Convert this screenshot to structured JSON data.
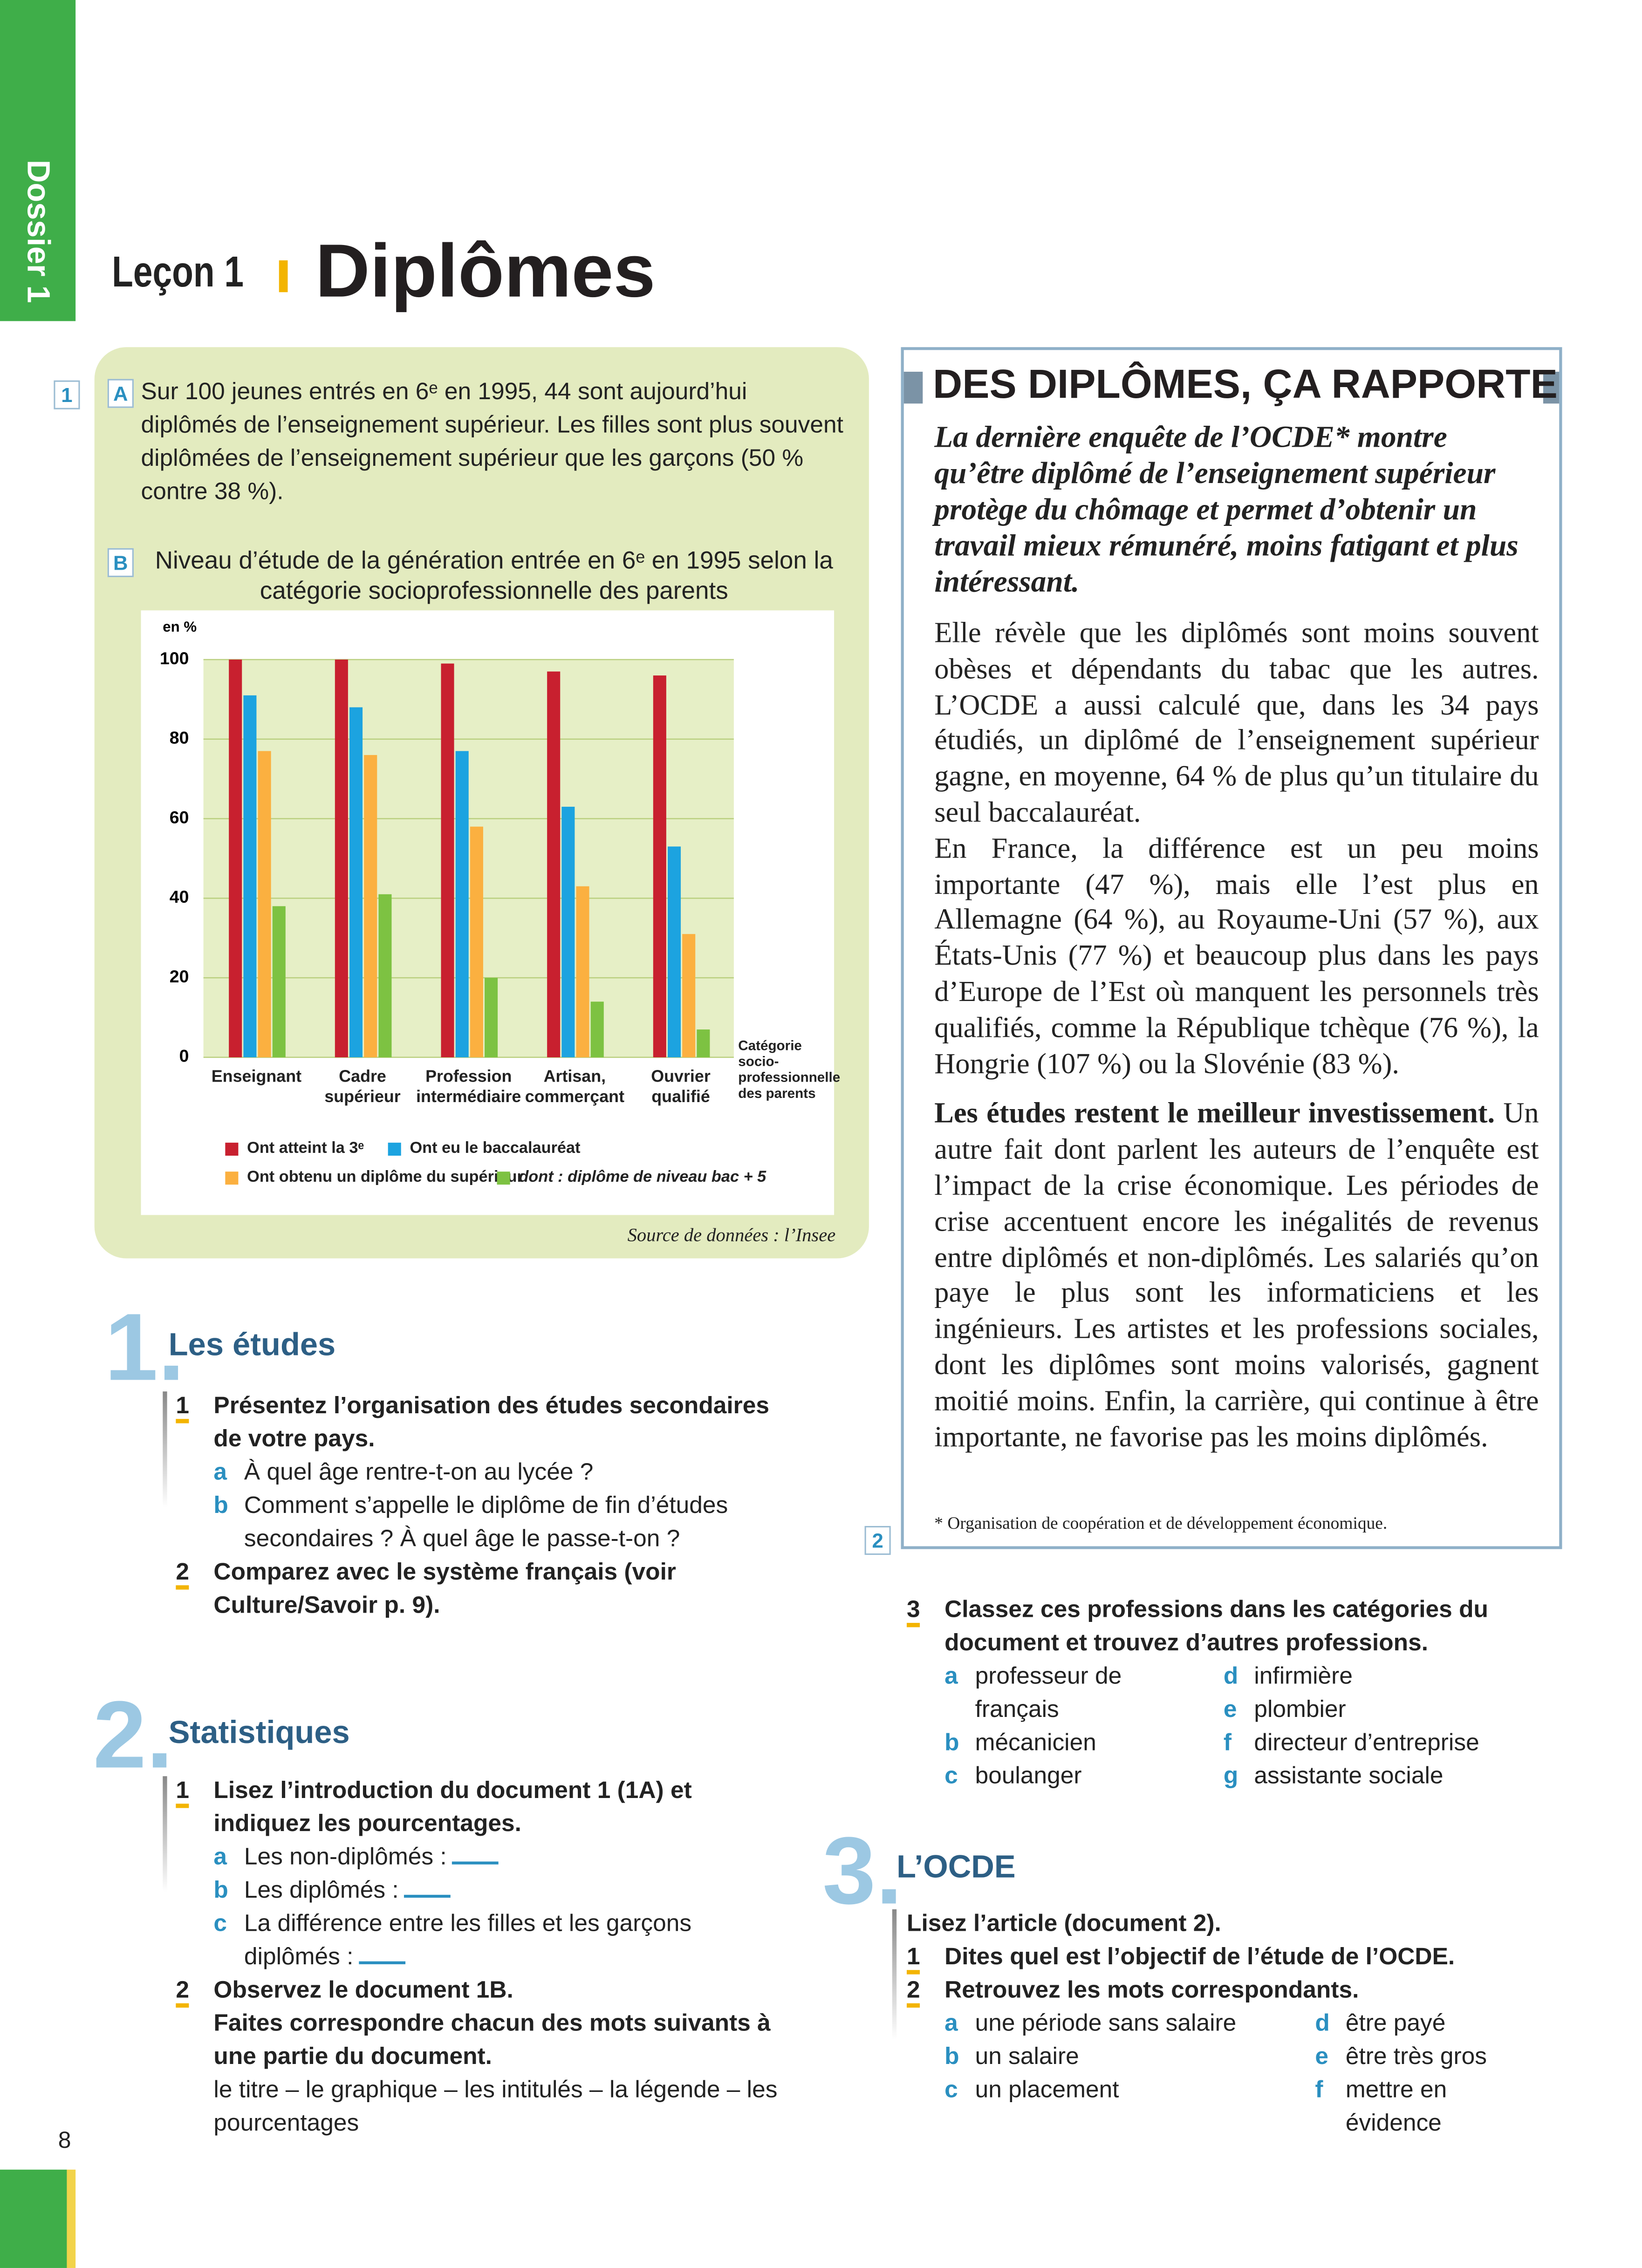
{
  "sidebar": "Dossier 1",
  "page_number": "8",
  "header": {
    "lesson": "Leçon 1",
    "title": "Diplômes"
  },
  "document1": {
    "number": "1",
    "a": {
      "label": "A",
      "text": "Sur 100 jeunes entrés en 6ᵉ en 1995, 44 sont aujourd’hui diplômés de l’enseignement supérieur. Les filles sont plus souvent diplômées de l’enseignement supérieur que les garçons (50 % contre 38 %)."
    },
    "b": {
      "label": "B",
      "chart_data": {
        "type": "bar",
        "title": "Niveau d’étude de la génération entrée en 6ᵉ en 1995 selon la catégorie socioprofessionnelle des parents",
        "y_label": "en %",
        "x_label": "Catégorie socio-professionnelle des parents",
        "categories": [
          "Enseignant",
          "Cadre supérieur",
          "Profession intermédiaire",
          "Artisan, commerçant",
          "Ouvrier qualifié"
        ],
        "series": [
          {
            "name": "Ont atteint la 3ᵉ",
            "color": "#c8202f",
            "values": [
              100,
              100,
              99,
              97,
              96
            ]
          },
          {
            "name": "Ont eu le baccalauréat",
            "color": "#1ca3e0",
            "values": [
              91,
              88,
              77,
              63,
              53
            ]
          },
          {
            "name": "Ont obtenu un diplôme du supérieur",
            "color": "#fbb040",
            "values": [
              77,
              76,
              58,
              43,
              31
            ]
          },
          {
            "name": "dont : diplôme de niveau bac + 5",
            "color": "#7dc242",
            "values": [
              38,
              41,
              20,
              14,
              7
            ]
          }
        ],
        "ylim": [
          0,
          100
        ],
        "yticks": [
          0,
          20,
          40,
          60,
          80,
          100
        ],
        "grid": true
      },
      "source": "Source de données : l’Insee"
    }
  },
  "document2": {
    "number": "2",
    "title": "DES DIPLÔMES, ÇA RAPPORTE",
    "lead": "La dernière enquête de l’OCDE* montre qu’être diplômé de l’enseignement supérieur protège du chômage et permet d’obtenir un travail mieux rémunéré, moins fatigant et plus intéressant.",
    "paragraphs": [
      "Elle révèle que les diplômés sont moins souvent obèses et dépendants du tabac que les autres. L’OCDE a aussi calculé que, dans les 34 pays étudiés, un diplômé de l’enseignement supérieur gagne, en moyenne, 64 % de plus qu’un titulaire du seul baccalauréat.",
      "En France, la différence est un peu moins importante (47 %), mais elle l’est plus en Allemagne (64 %), au Royaume-Uni (57 %), aux États-Unis (77 %) et beaucoup plus dans les pays d’Europe de l’Est où manquent les personnels très qualifiés, comme la République tchèque (76 %), la Hongrie (107 %) ou la Slovénie (83 %)."
    ],
    "subhead": "Les études restent le meilleur investissement.",
    "paragraph_after": "Un autre fait dont parlent les auteurs de l’enquête est l’impact de la crise économique. Les périodes de crise accentuent encore les inégalités de revenus entre diplômés et non-diplômés. Les salariés qu’on paye le plus sont les informaticiens et les ingénieurs. Les artistes et les professions sociales, dont les diplômes sont moins valorisés, gagnent moitié moins. Enfin, la carrière, qui continue à être importante, ne favorise pas les moins diplômés.",
    "footnote": "* Organisation de coopération et de développement économique."
  },
  "sections": [
    {
      "number": "1",
      "title": "Les études",
      "items": [
        {
          "number": "1",
          "text": "Présentez l’organisation des études secondaires de votre pays.",
          "subitems": [
            {
              "letter": "a",
              "text": "À quel âge rentre-t-on au lycée ?"
            },
            {
              "letter": "b",
              "text": "Comment s’appelle le diplôme de fin d’études secondaires ? À quel âge le passe-t-on ?"
            }
          ]
        },
        {
          "number": "2",
          "text": "Comparez avec le système français (voir Culture/Savoir p. 9)."
        }
      ]
    },
    {
      "number": "2",
      "title": "Statistiques",
      "items": [
        {
          "number": "1",
          "text": "Lisez l’introduction du document 1 (1A) et indiquez les pourcentages.",
          "subitems": [
            {
              "letter": "a",
              "text": "Les non-diplômés :"
            },
            {
              "letter": "b",
              "text": "Les diplômés :"
            },
            {
              "letter": "c",
              "text": "La différence entre les filles et les garçons diplômés :"
            }
          ]
        },
        {
          "number": "2",
          "text": "Observez le document 1B.",
          "instruction": "Faites correspondre chacun des mots suivants à une partie du document.",
          "words": "le titre – le graphique – les intitulés – la légende – les pourcentages"
        },
        {
          "number": "3",
          "text": "Classez ces professions dans les catégories du document et trouvez d’autres professions.",
          "subitems": [
            {
              "letter": "a",
              "text": "professeur de français"
            },
            {
              "letter": "b",
              "text": "mécanicien"
            },
            {
              "letter": "c",
              "text": "boulanger"
            },
            {
              "letter": "d",
              "text": "infirmière"
            },
            {
              "letter": "e",
              "text": "plombier"
            },
            {
              "letter": "f",
              "text": "directeur d’entreprise"
            },
            {
              "letter": "g",
              "text": "assistante sociale"
            }
          ]
        }
      ]
    },
    {
      "number": "3",
      "title": "L’OCDE",
      "intro": "Lisez l’article (document 2).",
      "items": [
        {
          "number": "1",
          "text": "Dites quel est l’objectif de l’étude de l’OCDE."
        },
        {
          "number": "2",
          "text": "Retrouvez les mots correspondants.",
          "subitems": [
            {
              "letter": "a",
              "text": "une période sans salaire"
            },
            {
              "letter": "b",
              "text": "un salaire"
            },
            {
              "letter": "c",
              "text": "un placement"
            },
            {
              "letter": "d",
              "text": "être payé"
            },
            {
              "letter": "e",
              "text": "être très gros"
            },
            {
              "letter": "f",
              "text": "mettre en évidence"
            }
          ]
        }
      ]
    }
  ]
}
